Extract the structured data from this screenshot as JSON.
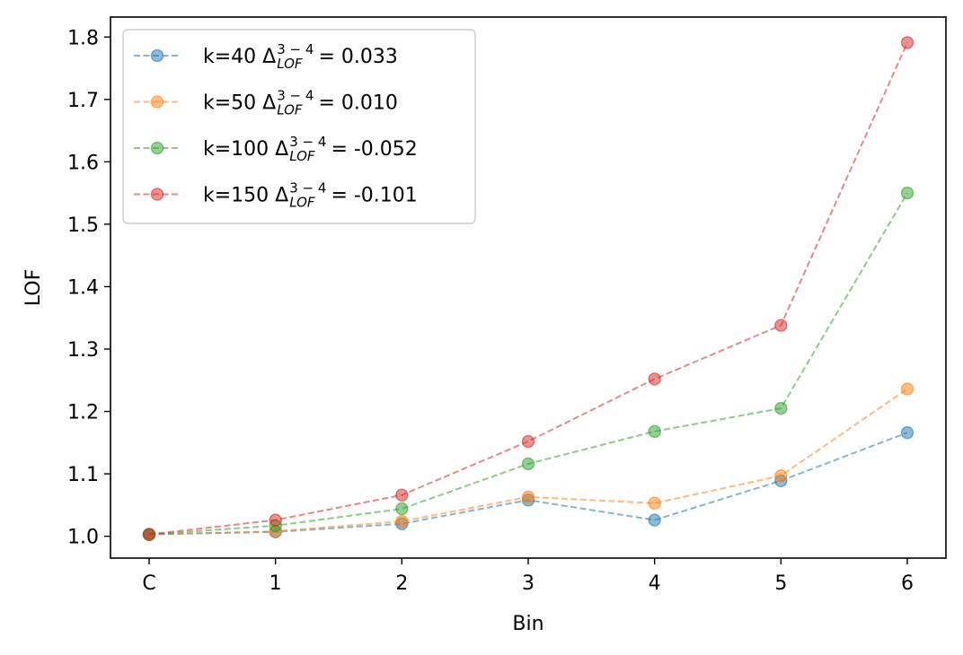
{
  "chart_data": {
    "type": "line",
    "xlabel": "Bin",
    "ylabel": "LOF",
    "categories": [
      "C",
      "1",
      "2",
      "3",
      "4",
      "5",
      "6"
    ],
    "ylim": [
      0.965,
      1.832
    ],
    "yticks": [
      "1.0",
      "1.1",
      "1.2",
      "1.3",
      "1.4",
      "1.5",
      "1.6",
      "1.7",
      "1.8"
    ],
    "grid": false,
    "legend_position": "upper-left",
    "series": [
      {
        "name": "k=40",
        "delta_symbol": "Δ",
        "delta_sub": "LOF",
        "delta_sup": "3 − 4",
        "delta_eq": "= 0.033",
        "color": "#1f77b4",
        "values": [
          1.003,
          1.007,
          1.02,
          1.058,
          1.026,
          1.089,
          1.166
        ]
      },
      {
        "name": "k=50",
        "delta_symbol": "Δ",
        "delta_sub": "LOF",
        "delta_sup": "3 − 4",
        "delta_eq": "= 0.010",
        "color": "#ff7f0e",
        "values": [
          1.003,
          1.008,
          1.024,
          1.063,
          1.053,
          1.097,
          1.236
        ]
      },
      {
        "name": "k=100",
        "delta_symbol": "Δ",
        "delta_sub": "LOF",
        "delta_sup": "3 − 4",
        "delta_eq": "= -0.052",
        "color": "#2ca02c",
        "values": [
          1.003,
          1.017,
          1.044,
          1.116,
          1.168,
          1.205,
          1.55
        ]
      },
      {
        "name": "k=150",
        "delta_symbol": "Δ",
        "delta_sub": "LOF",
        "delta_sup": "3 − 4",
        "delta_eq": "= -0.101",
        "color": "#d62728",
        "values": [
          1.003,
          1.026,
          1.066,
          1.152,
          1.252,
          1.338,
          1.791
        ]
      }
    ]
  }
}
